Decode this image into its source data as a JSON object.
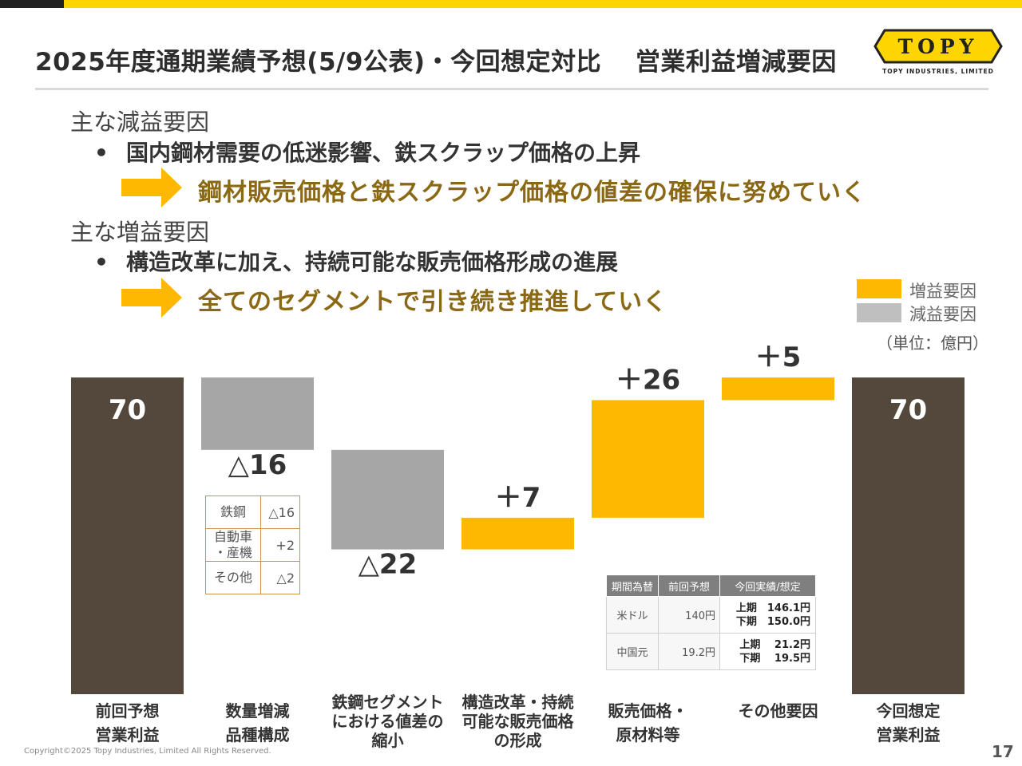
{
  "title": "2025年度通期業績予想(5/9公表)・今回想定対比　 営業利益増減要因",
  "logo": {
    "text": "TOPY",
    "subtext": "TOPY INDUSTRIES, LIMITED"
  },
  "sections": {
    "decrease_head": "主な減益要因",
    "decrease_bullet": "国内鋼材需要の低迷影響、鉄スクラップ価格の上昇",
    "decrease_action": "鋼材販売価格と鉄スクラップ価格の値差の確保に努めていく",
    "increase_head": "主な増益要因",
    "increase_bullet": "構造改革に加え、持続可能な販売価格形成の進展",
    "increase_action": "全てのセグメントで引き続き推進していく",
    "bullet_mark": "•"
  },
  "legend": {
    "increase": "増益要因",
    "decrease": "減益要因",
    "unit": "（単位：億円）"
  },
  "colors": {
    "total": "#54473b",
    "increase": "#ffb800",
    "decrease": "#a6a6a6",
    "accent": "#ffd500",
    "action_text": "#8b6914"
  },
  "chart_data": {
    "type": "waterfall",
    "unit": "億円",
    "ylim": [
      0,
      100
    ],
    "steps": [
      {
        "category": "前回予想\n営業利益",
        "kind": "total",
        "value": 70,
        "label": "70"
      },
      {
        "category": "数量増減\n品種構成",
        "kind": "decrease",
        "value": -16,
        "label": "△16"
      },
      {
        "category": "鉄鋼セグメント\nにおける値差の\n縮小",
        "kind": "decrease",
        "value": -22,
        "label": "△22"
      },
      {
        "category": "構造改革・持続\n可能な販売価格\nの形成",
        "kind": "increase",
        "value": 7,
        "label": "＋7"
      },
      {
        "category": "販売価格・\n原材料等",
        "kind": "increase",
        "value": 26,
        "label": "＋26"
      },
      {
        "category": "その他要因",
        "kind": "increase",
        "value": 5,
        "label": "＋5"
      },
      {
        "category": "今回想定\n営業利益",
        "kind": "total",
        "value": 70,
        "label": "70"
      }
    ]
  },
  "segment_breakdown": {
    "rows": [
      {
        "label": "鉄鋼",
        "value": "△16"
      },
      {
        "label": "自動車\n・産機",
        "value": "+2"
      },
      {
        "label": "その他",
        "value": "△2"
      }
    ]
  },
  "fx_table": {
    "headers": [
      "期間為替",
      "前回予想",
      "今回実績/想定"
    ],
    "rows": [
      {
        "currency": "米ドル",
        "previous": "140円",
        "h1": "上期　146.1円",
        "h2": "下期　150.0円"
      },
      {
        "currency": "中国元",
        "previous": "19.2円",
        "h1": "上期　 21.2円",
        "h2": "下期　 19.5円"
      }
    ]
  },
  "footer": {
    "copyright": "Copyright©2025 Topy Industries, Limited All Rights Reserved.",
    "page": "17"
  }
}
